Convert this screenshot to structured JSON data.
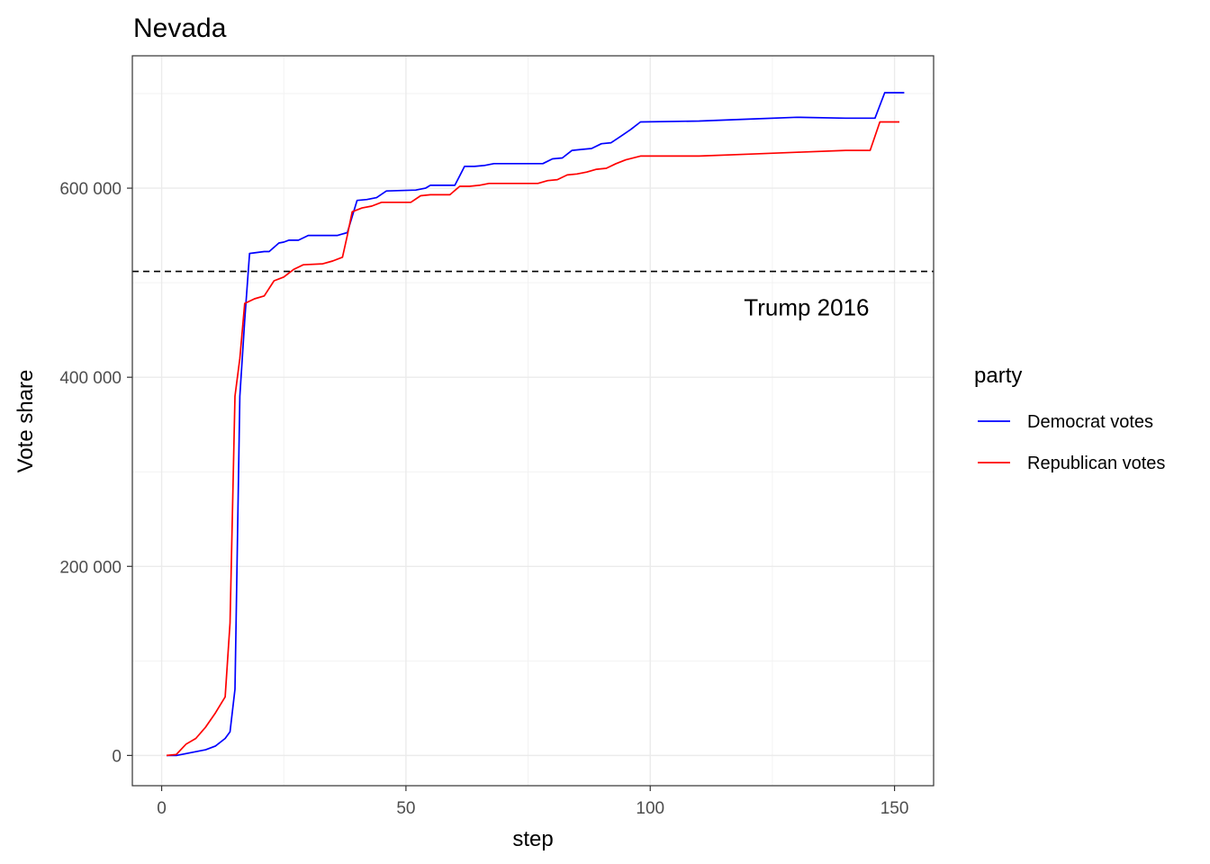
{
  "chart_data": {
    "type": "line",
    "title": "Nevada",
    "xlabel": "step",
    "ylabel": "Vote share",
    "xlim": [
      -6,
      158
    ],
    "ylim": [
      -32000,
      740000
    ],
    "x_ticks": [
      0,
      50,
      100,
      150
    ],
    "x_tick_labels": [
      "0",
      "50",
      "100",
      "150"
    ],
    "y_ticks": [
      0,
      200000,
      400000,
      600000
    ],
    "y_tick_labels": [
      "0",
      "200 000",
      "400 000",
      "600 000"
    ],
    "grid": true,
    "legend": {
      "title": "party",
      "position": "right"
    },
    "reference_line": {
      "y": 512000,
      "style": "dashed",
      "label": "Trump 2016",
      "label_x": 132,
      "label_y": 474000
    },
    "series": [
      {
        "name": "Democrat votes",
        "color": "#0000ff",
        "points": [
          [
            1,
            0
          ],
          [
            3,
            0
          ],
          [
            5,
            2000
          ],
          [
            7,
            4000
          ],
          [
            9,
            6000
          ],
          [
            11,
            10000
          ],
          [
            13,
            18000
          ],
          [
            14,
            25000
          ],
          [
            15,
            70000
          ],
          [
            16,
            380000
          ],
          [
            17,
            460000
          ],
          [
            18,
            531000
          ],
          [
            21,
            533000
          ],
          [
            22,
            533000
          ],
          [
            24,
            542000
          ],
          [
            25,
            543000
          ],
          [
            26,
            545000
          ],
          [
            28,
            545000
          ],
          [
            30,
            550000
          ],
          [
            36,
            550000
          ],
          [
            38,
            553000
          ],
          [
            39,
            570000
          ],
          [
            40,
            587000
          ],
          [
            42,
            588000
          ],
          [
            44,
            590000
          ],
          [
            46,
            597000
          ],
          [
            52,
            598000
          ],
          [
            54,
            600000
          ],
          [
            55,
            603000
          ],
          [
            60,
            603000
          ],
          [
            62,
            623000
          ],
          [
            64,
            623000
          ],
          [
            66,
            624000
          ],
          [
            68,
            626000
          ],
          [
            78,
            626000
          ],
          [
            80,
            631000
          ],
          [
            82,
            632000
          ],
          [
            84,
            640000
          ],
          [
            86,
            641000
          ],
          [
            88,
            642000
          ],
          [
            90,
            647000
          ],
          [
            92,
            648000
          ],
          [
            94,
            655000
          ],
          [
            96,
            662000
          ],
          [
            98,
            670000
          ],
          [
            110,
            671000
          ],
          [
            120,
            673000
          ],
          [
            130,
            675000
          ],
          [
            140,
            674000
          ],
          [
            146,
            674000
          ],
          [
            148,
            701000
          ],
          [
            152,
            701000
          ]
        ]
      },
      {
        "name": "Republican votes",
        "color": "#ff0000",
        "points": [
          [
            1,
            0
          ],
          [
            3,
            1000
          ],
          [
            5,
            12000
          ],
          [
            7,
            18000
          ],
          [
            9,
            30000
          ],
          [
            11,
            45000
          ],
          [
            13,
            62000
          ],
          [
            14,
            140000
          ],
          [
            15,
            380000
          ],
          [
            16,
            420000
          ],
          [
            17,
            478000
          ],
          [
            19,
            483000
          ],
          [
            21,
            486000
          ],
          [
            23,
            502000
          ],
          [
            25,
            506000
          ],
          [
            27,
            514000
          ],
          [
            29,
            519000
          ],
          [
            33,
            520000
          ],
          [
            35,
            523000
          ],
          [
            37,
            527000
          ],
          [
            38,
            550000
          ],
          [
            39,
            575000
          ],
          [
            41,
            579000
          ],
          [
            43,
            581000
          ],
          [
            45,
            585000
          ],
          [
            51,
            585000
          ],
          [
            53,
            592000
          ],
          [
            55,
            593000
          ],
          [
            59,
            593000
          ],
          [
            61,
            602000
          ],
          [
            63,
            602000
          ],
          [
            65,
            603000
          ],
          [
            67,
            605000
          ],
          [
            77,
            605000
          ],
          [
            79,
            608000
          ],
          [
            81,
            609000
          ],
          [
            83,
            614000
          ],
          [
            85,
            615000
          ],
          [
            87,
            617000
          ],
          [
            89,
            620000
          ],
          [
            91,
            621000
          ],
          [
            93,
            626000
          ],
          [
            95,
            630000
          ],
          [
            98,
            634000
          ],
          [
            110,
            634000
          ],
          [
            120,
            636000
          ],
          [
            130,
            638000
          ],
          [
            140,
            640000
          ],
          [
            145,
            640000
          ],
          [
            147,
            670000
          ],
          [
            151,
            670000
          ]
        ]
      }
    ]
  }
}
